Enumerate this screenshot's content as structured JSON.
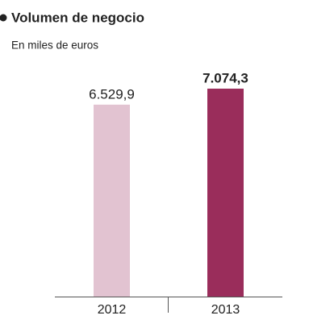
{
  "chart_data": {
    "type": "bar",
    "title": "Volumen de negocio",
    "subtitle": "En miles de euros",
    "categories": [
      "2012",
      "2013"
    ],
    "values": [
      6529.9,
      7074.3
    ],
    "value_labels": [
      "6.529,9",
      "7.074,3"
    ],
    "colors": [
      "#e2c3d1",
      "#9a2d5b"
    ]
  }
}
